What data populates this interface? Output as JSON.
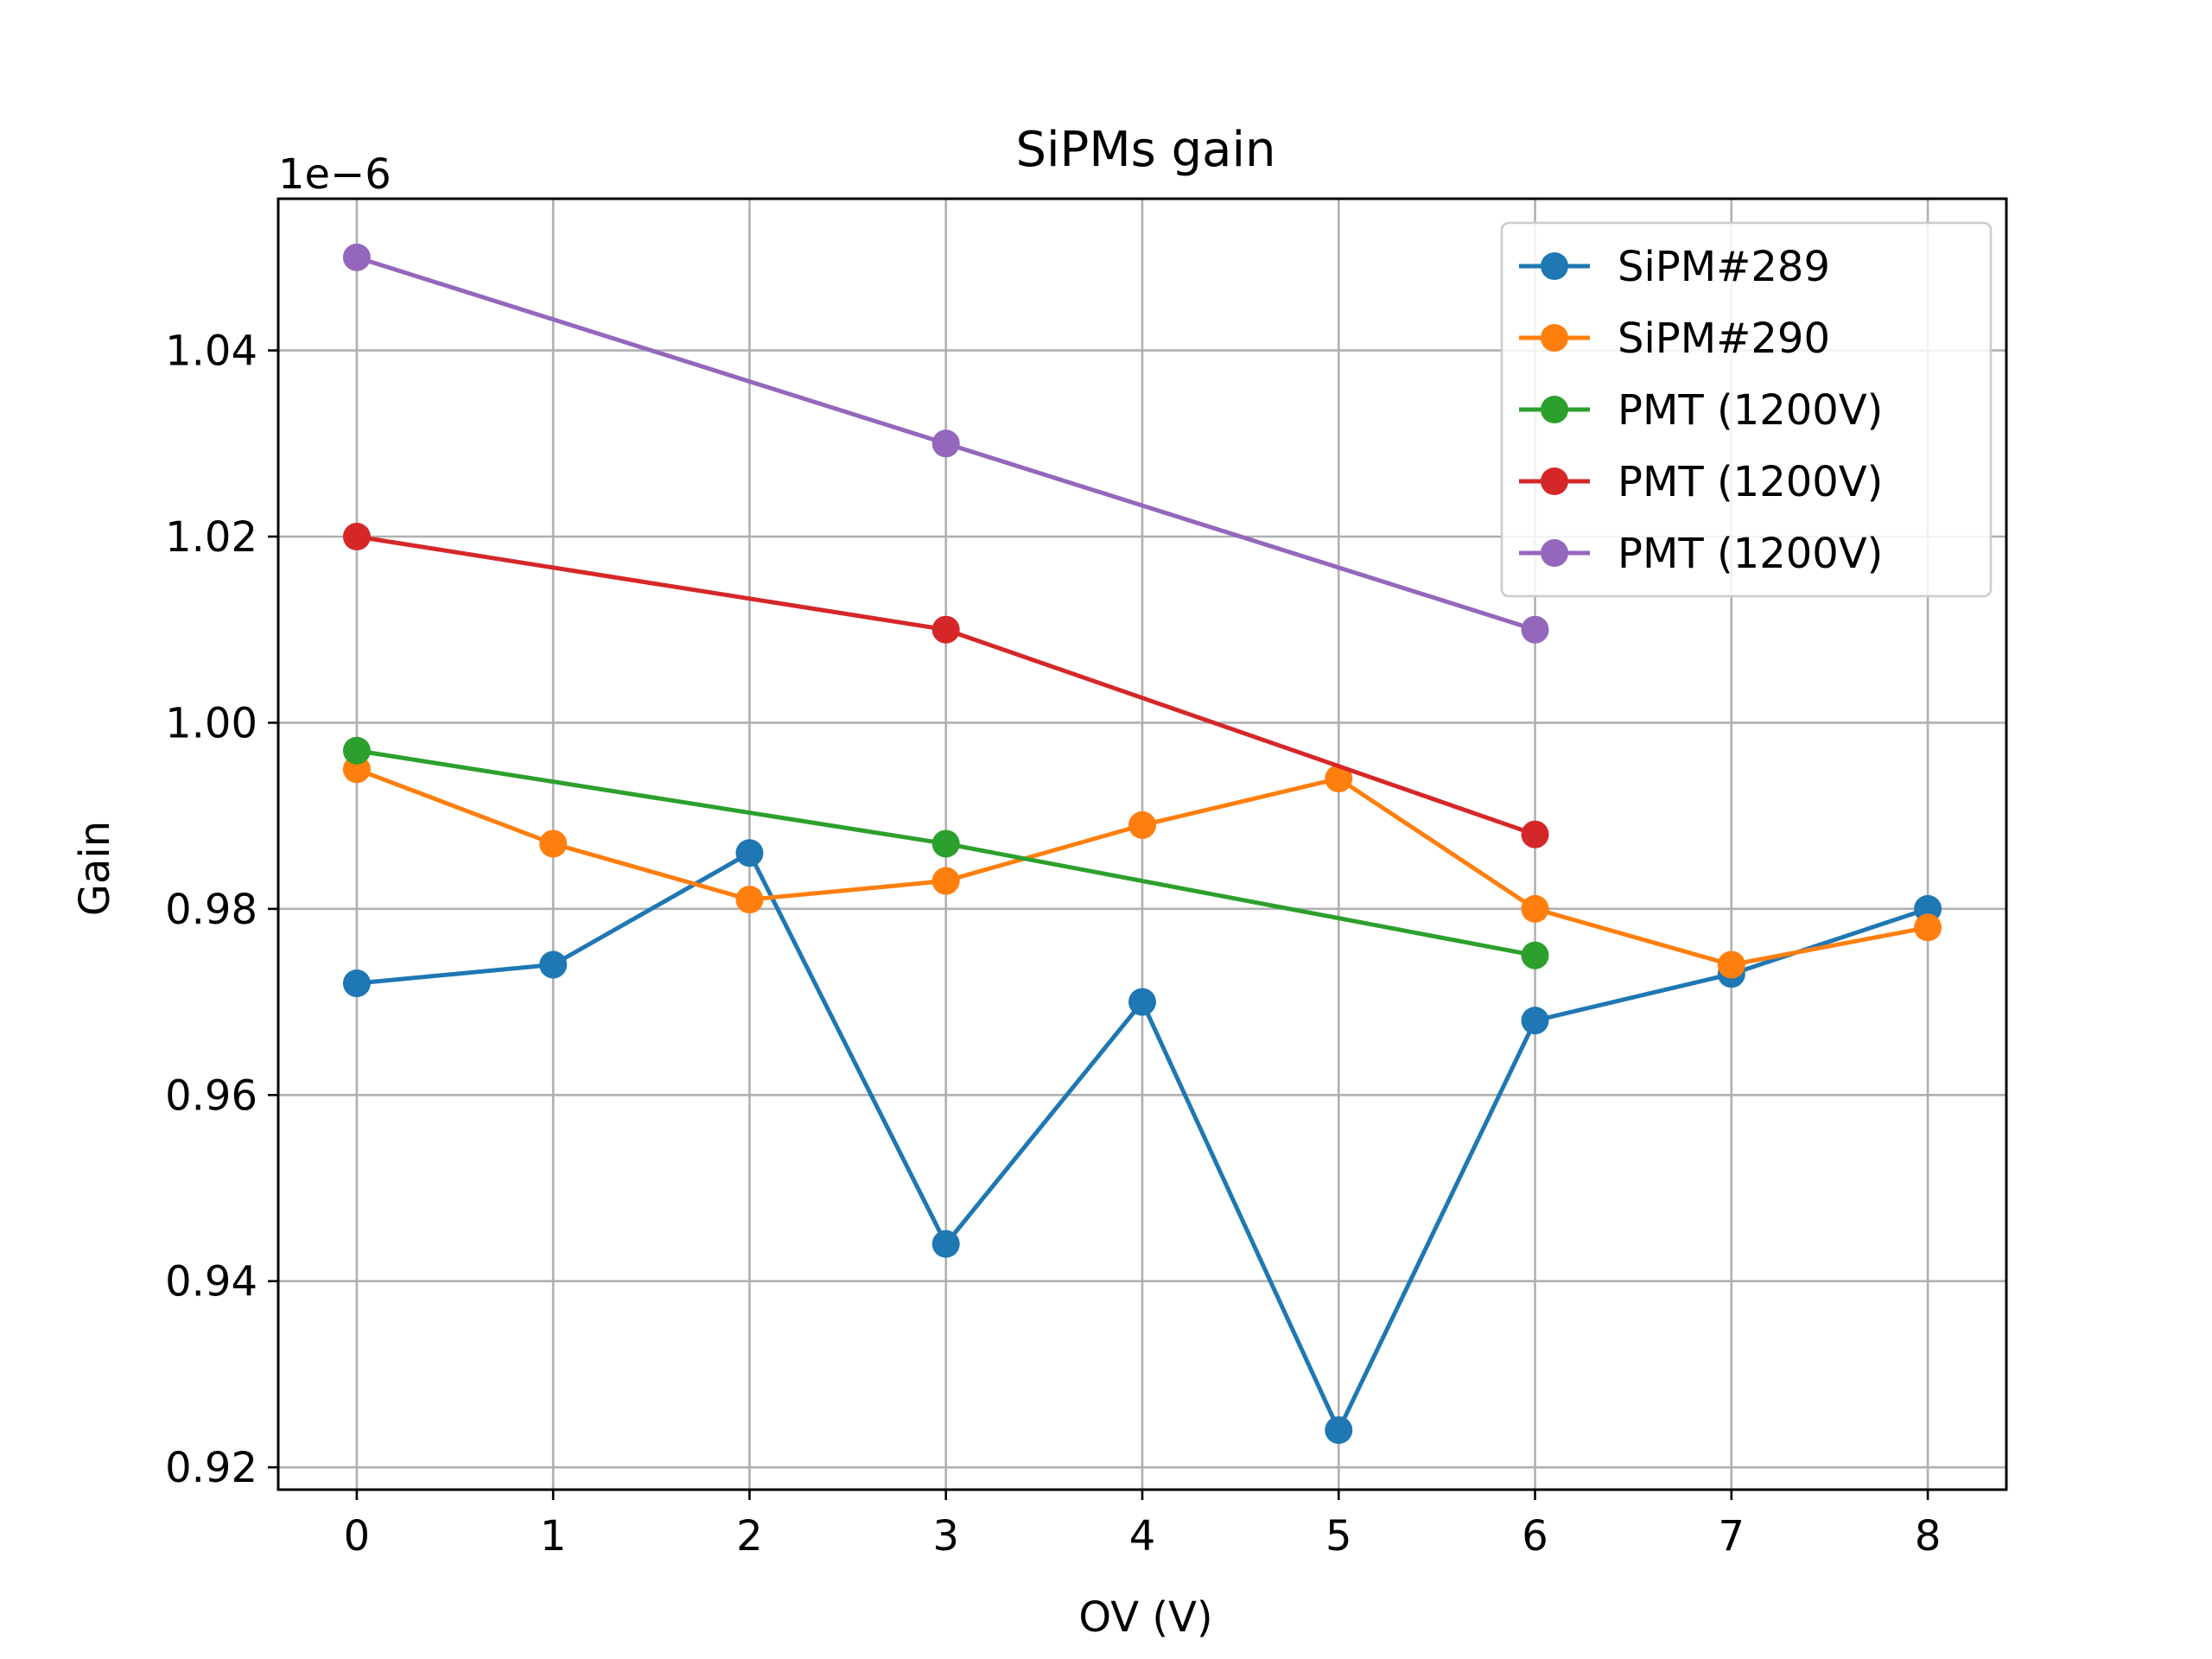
{
  "chart_data": {
    "type": "line",
    "title": "SiPMs gain",
    "xlabel": "OV (V)",
    "ylabel": "Gain",
    "offset_label": "1e−6",
    "xlim": [
      -0.4,
      8.4
    ],
    "ylim": [
      0.9176,
      1.0563
    ],
    "xticks": [
      0,
      1,
      2,
      3,
      4,
      5,
      6,
      7,
      8
    ],
    "xtick_labels": [
      "0",
      "1",
      "2",
      "3",
      "4",
      "5",
      "6",
      "7",
      "8"
    ],
    "yticks": [
      0.92,
      0.94,
      0.96,
      0.98,
      1.0,
      1.02,
      1.04
    ],
    "ytick_labels": [
      "0.92",
      "0.94",
      "0.96",
      "0.98",
      "1.00",
      "1.02",
      "1.04"
    ],
    "grid": true,
    "legend_position": "upper right",
    "series": [
      {
        "name": "SiPM#289",
        "color": "#1f77b4",
        "x": [
          0,
          1,
          2,
          3,
          4,
          5,
          6,
          7,
          8
        ],
        "y": [
          0.972,
          0.974,
          0.986,
          0.944,
          0.97,
          0.924,
          0.968,
          0.973,
          0.98
        ]
      },
      {
        "name": "SiPM#290",
        "color": "#ff7f0e",
        "x": [
          0,
          1,
          2,
          3,
          4,
          5,
          6,
          7,
          8
        ],
        "y": [
          0.995,
          0.987,
          0.981,
          0.983,
          0.989,
          0.994,
          0.98,
          0.974,
          0.978
        ]
      },
      {
        "name": "PMT (1200V)",
        "color": "#2ca02c",
        "x": [
          0,
          3,
          6
        ],
        "y": [
          0.997,
          0.987,
          0.975
        ]
      },
      {
        "name": "PMT (1200V)",
        "color": "#d62728",
        "x": [
          0,
          3,
          6
        ],
        "y": [
          1.02,
          1.01,
          0.988
        ]
      },
      {
        "name": "PMT (1200V)",
        "color": "#9467bd",
        "x": [
          0,
          3,
          6
        ],
        "y": [
          1.05,
          1.03,
          1.01
        ]
      }
    ]
  }
}
